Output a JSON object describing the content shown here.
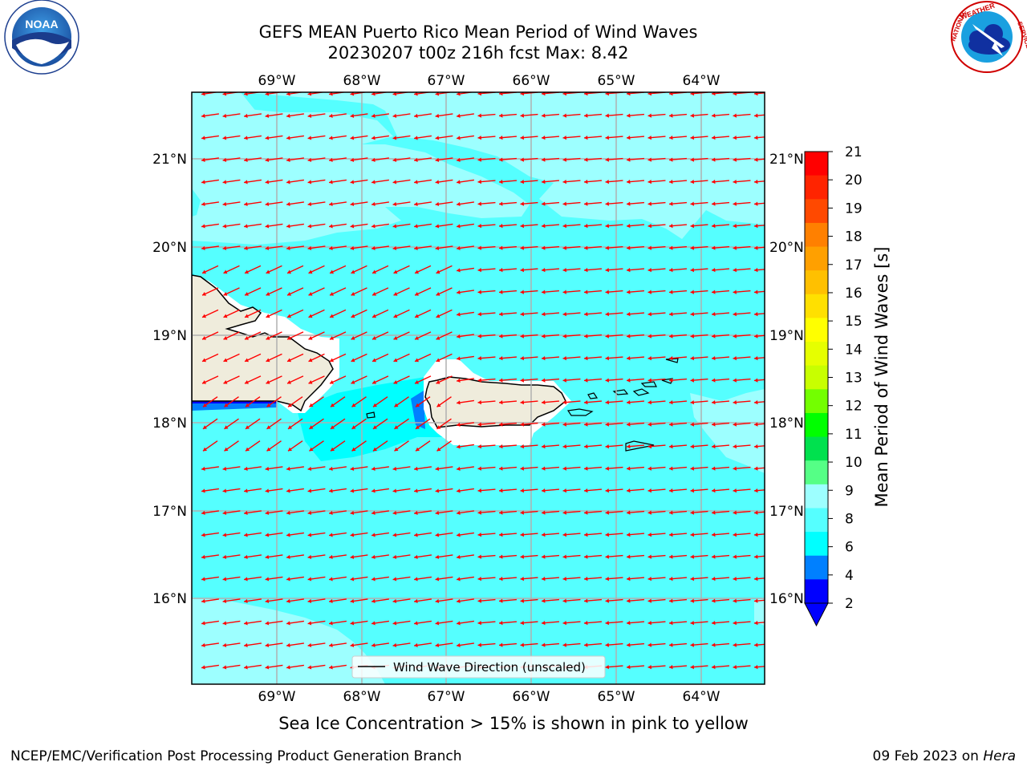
{
  "title_line1": "GEFS MEAN Puerto Rico Mean Period of Wind Waves",
  "title_line2": "20230207 t00z 216h fcst   Max: 8.42",
  "logos": {
    "left": {
      "name": "NOAA",
      "text": "NOAA",
      "ring_text": "NATIONAL OCEANIC AND ATMOSPHERIC ADMINISTRATION · U.S. DEPARTMENT OF COMMERCE"
    },
    "right": {
      "name": "National Weather Service",
      "ring_text": "NATIONAL WEATHER SERVICE"
    }
  },
  "map": {
    "lon_labels": [
      "69°W",
      "68°W",
      "67°W",
      "66°W",
      "65°W",
      "64°W"
    ],
    "lat_labels": [
      "21°N",
      "20°N",
      "19°N",
      "18°N",
      "17°N",
      "16°N"
    ],
    "legend_label": "Wind Wave Direction (unscaled)",
    "land_color": "#efecdc",
    "arrow_color": "#ff0000"
  },
  "colorbar": {
    "title": "Mean Period of Wind Waves [s]",
    "ticks": [
      "21",
      "20",
      "19",
      "18",
      "17",
      "16",
      "15",
      "14",
      "13",
      "12",
      "11",
      "10",
      "9",
      "8",
      "6",
      "4",
      "2"
    ],
    "colors": [
      "#ff0000",
      "#ff2400",
      "#ff4900",
      "#ff8000",
      "#ffa000",
      "#ffc000",
      "#ffe000",
      "#ffff00",
      "#e6ff00",
      "#c8ff00",
      "#73ff00",
      "#00ff00",
      "#00e14e",
      "#55ff86",
      "#9dffff",
      "#55ffff",
      "#00ffff",
      "#0080ff",
      "#0000ff"
    ],
    "under_color": "#0000ff"
  },
  "footer": {
    "note": "Sea Ice Concentration > 15% is shown in pink to yellow",
    "left": "NCEP/EMC/Verification Post Processing Product Generation Branch",
    "right_date": "09 Feb 2023 on ",
    "right_machine": "Hera"
  }
}
